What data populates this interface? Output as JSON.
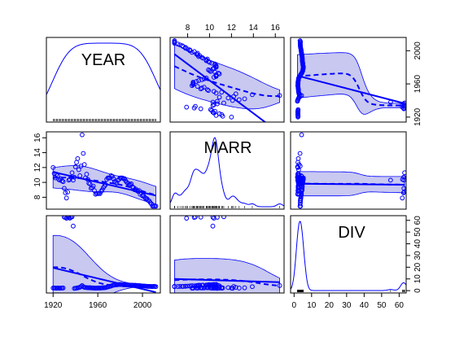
{
  "chart_data": {
    "type": "scatter",
    "subtype": "scatterplot-matrix",
    "variables": [
      "YEAR",
      "MARR",
      "DIV"
    ],
    "colors": {
      "line": "#0000ff",
      "band_fill": "#c8c8f0",
      "axis": "#000000",
      "rug": "#000000"
    },
    "axes": {
      "YEAR": {
        "ticks": [
          "1920",
          "1960",
          "2000"
        ],
        "tick_values": [
          1920,
          1960,
          2000
        ],
        "range": [
          1914,
          2016
        ]
      },
      "MARR": {
        "ticks": [
          "8",
          "10",
          "12",
          "14",
          "16"
        ],
        "tick_values": [
          8,
          10,
          12,
          14,
          16
        ],
        "range": [
          6.4,
          16.8
        ]
      },
      "DIV": {
        "ticks": [
          "0",
          "10",
          "20",
          "30",
          "40",
          "50",
          "60"
        ],
        "tick_values": [
          0,
          10,
          20,
          30,
          40,
          50,
          60
        ],
        "range": [
          -2,
          64
        ]
      }
    },
    "data": {
      "YEAR": [
        1920,
        1921,
        1922,
        1923,
        1924,
        1925,
        1926,
        1927,
        1928,
        1929,
        1930,
        1931,
        1932,
        1933,
        1934,
        1935,
        1936,
        1937,
        1938,
        1939,
        1940,
        1941,
        1942,
        1943,
        1944,
        1945,
        1946,
        1947,
        1948,
        1949,
        1950,
        1951,
        1952,
        1953,
        1954,
        1955,
        1956,
        1957,
        1958,
        1959,
        1960,
        1961,
        1962,
        1963,
        1964,
        1965,
        1966,
        1967,
        1968,
        1969,
        1970,
        1971,
        1972,
        1973,
        1974,
        1975,
        1976,
        1977,
        1978,
        1979,
        1980,
        1981,
        1982,
        1983,
        1984,
        1985,
        1986,
        1987,
        1988,
        1989,
        1990,
        1991,
        1992,
        1993,
        1994,
        1995,
        1996,
        1997,
        1998,
        1999,
        2000,
        2001,
        2002,
        2003,
        2004,
        2005,
        2006,
        2007,
        2008,
        2009,
        2010,
        2011,
        2012
      ],
      "MARR": [
        12.0,
        11.2,
        10.6,
        11.1,
        10.9,
        10.4,
        10.3,
        10.5,
        10.2,
        10.1,
        9.2,
        8.6,
        7.9,
        8.7,
        10.3,
        10.4,
        10.7,
        11.3,
        10.3,
        10.7,
        12.1,
        12.7,
        13.2,
        11.7,
        10.9,
        12.2,
        16.4,
        13.9,
        12.4,
        10.6,
        11.1,
        10.4,
        9.9,
        9.8,
        9.2,
        9.3,
        9.5,
        8.9,
        8.4,
        8.5,
        8.5,
        8.5,
        8.5,
        8.8,
        9.0,
        9.3,
        9.5,
        9.7,
        10.4,
        10.6,
        10.6,
        10.6,
        10.9,
        10.8,
        10.5,
        10.1,
        10.0,
        9.9,
        10.3,
        10.4,
        10.6,
        10.6,
        10.6,
        10.5,
        10.5,
        10.2,
        10.0,
        9.9,
        9.7,
        9.7,
        9.8,
        9.4,
        9.3,
        9.0,
        9.1,
        8.9,
        8.8,
        8.9,
        8.4,
        8.6,
        8.2,
        8.2,
        8.0,
        7.8,
        7.8,
        7.6,
        7.5,
        7.3,
        7.1,
        6.8,
        6.8,
        6.8,
        6.8
      ],
      "DIV": [
        2.2,
        2.3,
        2.2,
        2.1,
        2.2,
        2.2,
        2.1,
        2.2,
        2.2,
        2.3,
        62.7,
        62.5,
        61.8,
        62.9,
        62.7,
        61.9,
        62.6,
        63.1,
        55.1,
        1.9,
        2.0,
        2.2,
        2.4,
        2.6,
        2.9,
        3.5,
        4.3,
        3.4,
        2.8,
        2.7,
        2.6,
        2.5,
        2.5,
        2.5,
        2.4,
        2.3,
        2.3,
        2.2,
        2.1,
        2.2,
        2.2,
        2.3,
        2.2,
        2.3,
        2.4,
        2.5,
        2.5,
        2.6,
        2.9,
        3.2,
        3.5,
        3.7,
        4.0,
        4.4,
        4.6,
        4.8,
        5.0,
        5.0,
        5.1,
        5.3,
        5.2,
        5.3,
        5.1,
        5.0,
        5.0,
        5.0,
        4.8,
        4.8,
        4.7,
        4.7,
        4.7,
        4.7,
        4.6,
        4.6,
        4.6,
        4.4,
        4.3,
        4.3,
        4.2,
        4.1,
        4.0,
        4.0,
        3.9,
        3.8,
        3.7,
        3.6,
        3.6,
        3.6,
        3.5,
        3.5,
        3.6,
        3.6,
        3.4
      ]
    }
  }
}
